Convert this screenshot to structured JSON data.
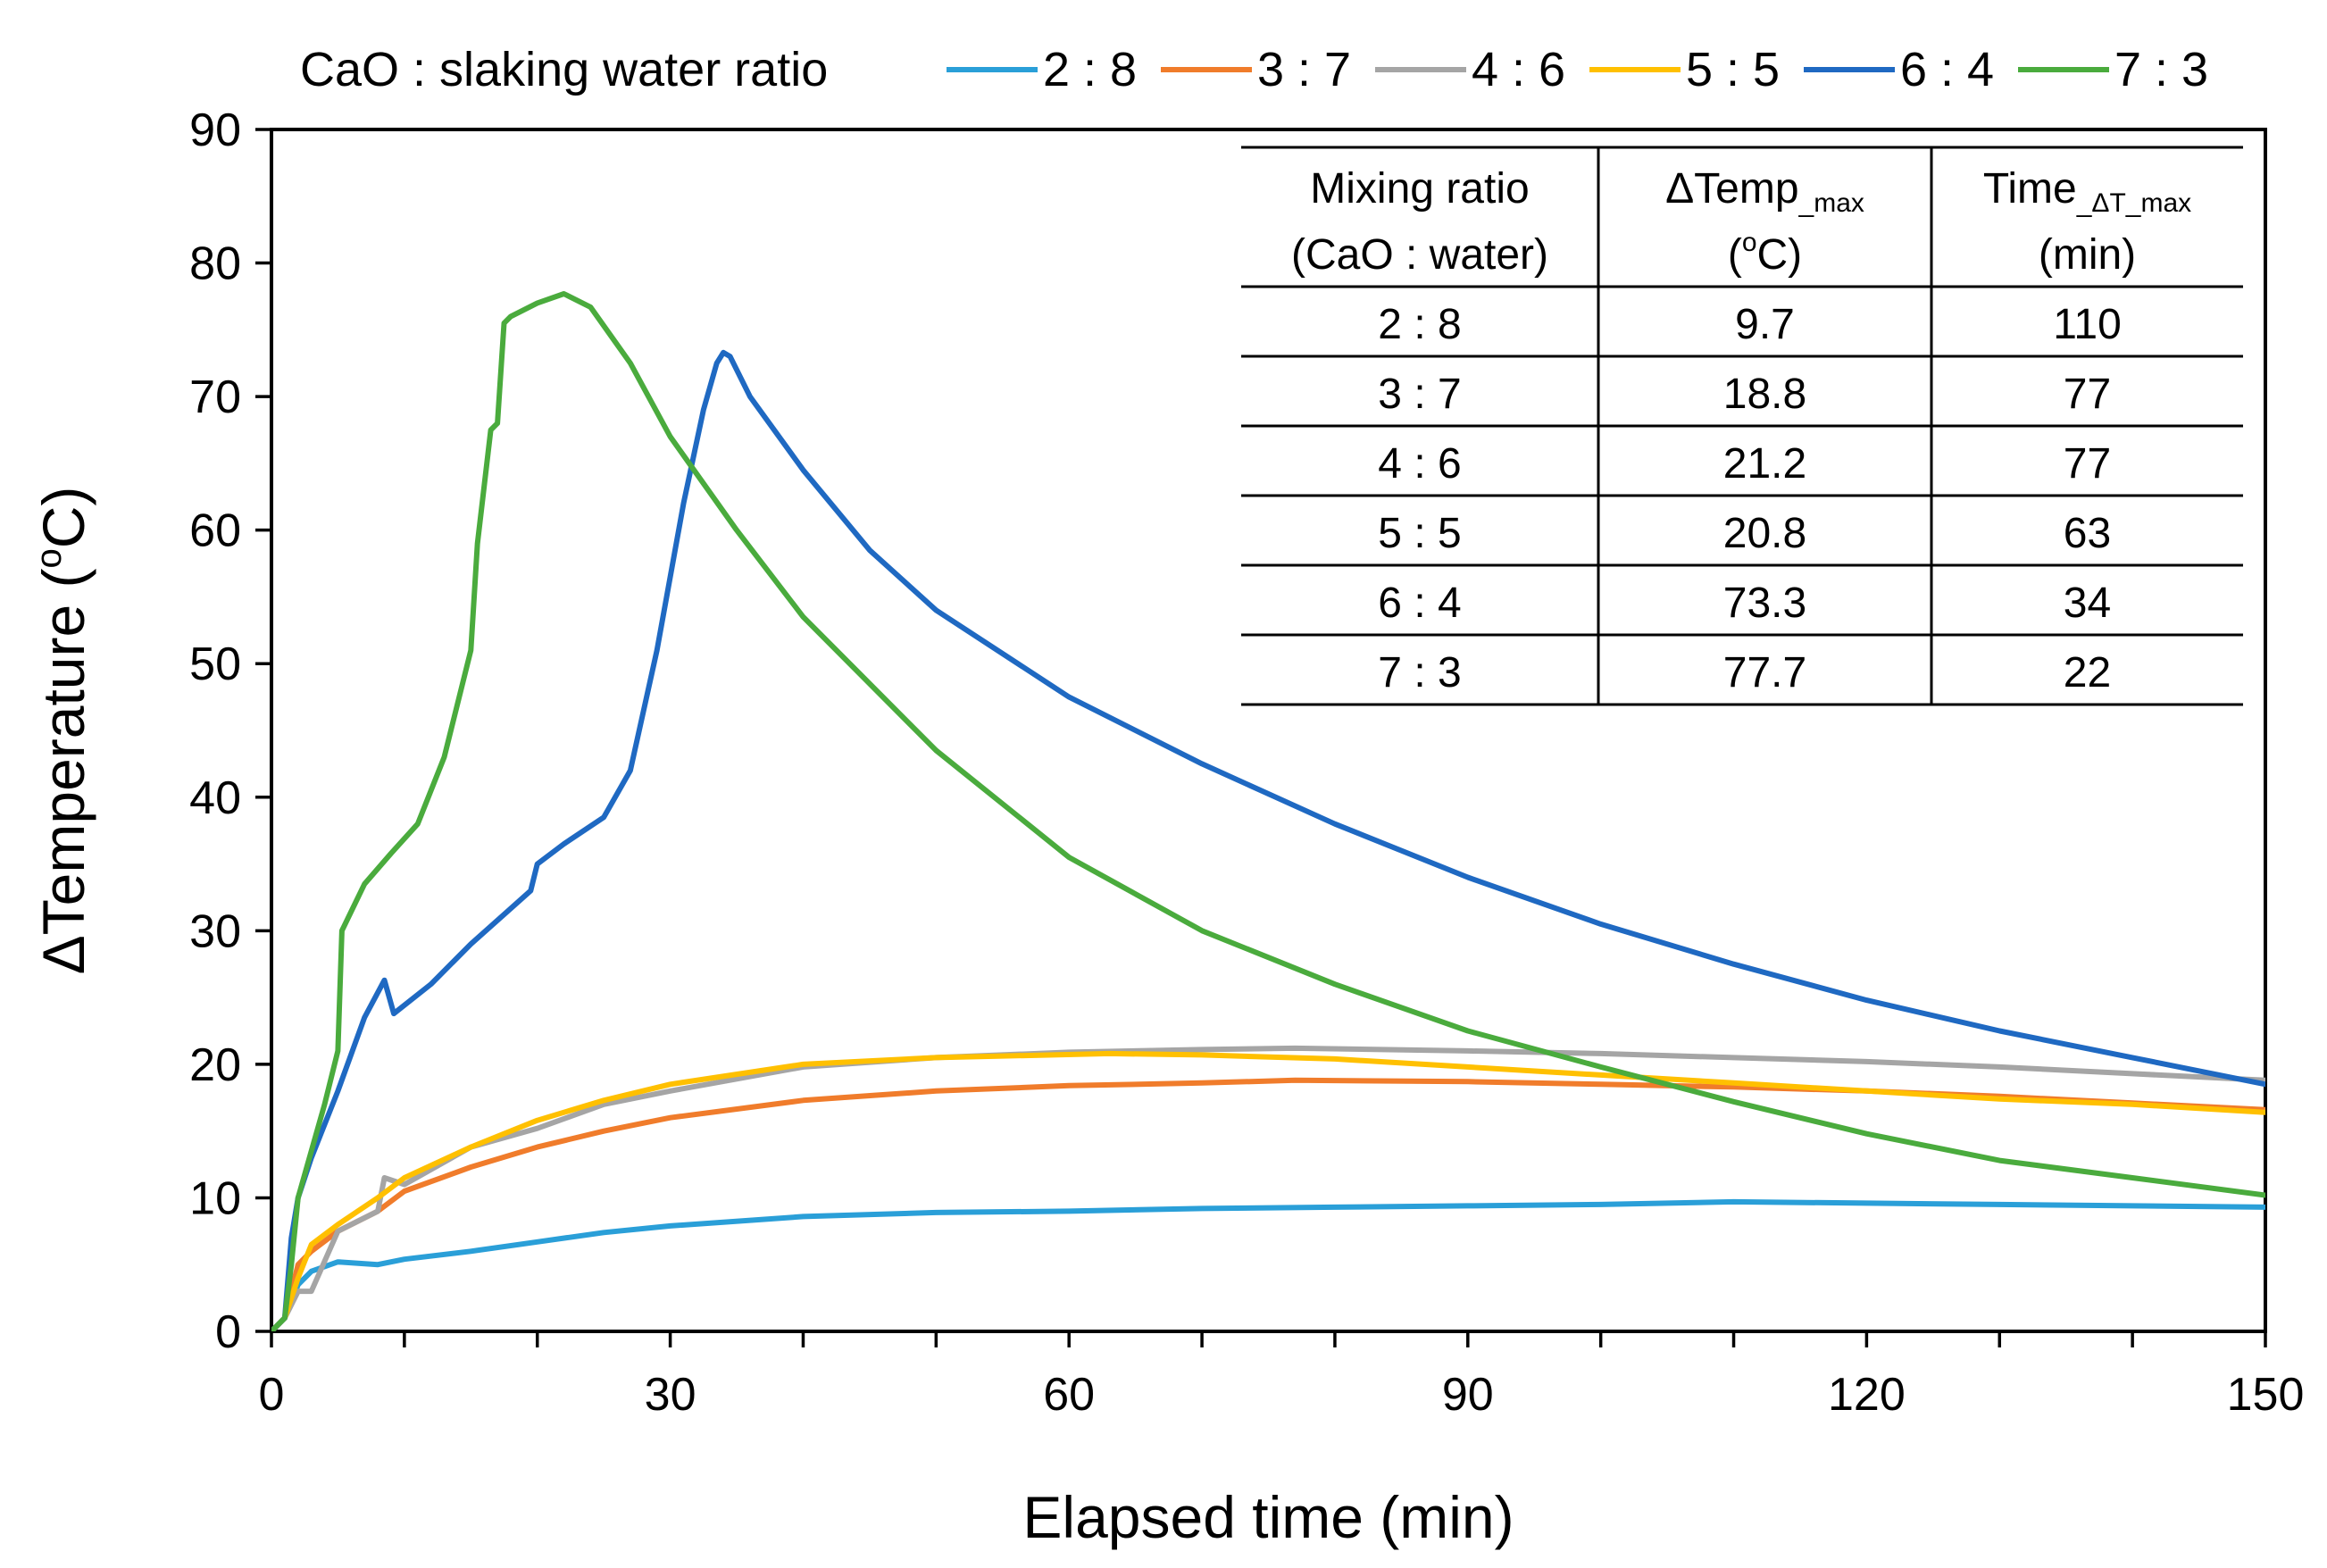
{
  "chart_data": {
    "type": "line",
    "title": "",
    "xlabel": "Elapsed time (min)",
    "ylabel": "ΔTemperature (°C)",
    "ylabel_parts": {
      "prefix": "ΔTemperature (",
      "sup": "o",
      "suffix": "C)"
    },
    "xlim": [
      0,
      150
    ],
    "ylim": [
      0,
      90
    ],
    "xticks": [
      0,
      30,
      60,
      90,
      120,
      150
    ],
    "yticks": [
      0,
      10,
      20,
      30,
      40,
      50,
      60,
      70,
      80,
      90
    ],
    "grid": false,
    "legend_title": "CaO : slaking water ratio",
    "legend_position": "top",
    "series": [
      {
        "name": "2 : 8",
        "color": "#2a9fd8",
        "x": [
          0,
          1,
          2,
          3,
          5,
          8,
          10,
          15,
          20,
          25,
          30,
          40,
          50,
          60,
          70,
          80,
          90,
          100,
          110,
          120,
          130,
          140,
          150
        ],
        "y": [
          0,
          1,
          3.5,
          4.5,
          5.2,
          5.0,
          5.4,
          6.0,
          6.7,
          7.4,
          7.9,
          8.6,
          8.9,
          9.0,
          9.2,
          9.3,
          9.4,
          9.5,
          9.7,
          9.6,
          9.5,
          9.4,
          9.3
        ]
      },
      {
        "name": "3 : 7",
        "color": "#f07c2b",
        "x": [
          0,
          1,
          2,
          3,
          5,
          8,
          10,
          15,
          20,
          25,
          30,
          40,
          50,
          60,
          70,
          77,
          90,
          100,
          110,
          120,
          130,
          140,
          150
        ],
        "y": [
          0,
          1,
          5,
          6,
          7.5,
          9,
          10.5,
          12.3,
          13.8,
          15.0,
          16.0,
          17.3,
          18.0,
          18.4,
          18.6,
          18.8,
          18.7,
          18.5,
          18.3,
          18.0,
          17.6,
          17.1,
          16.6
        ]
      },
      {
        "name": "4 : 6",
        "color": "#a5a5a5",
        "x": [
          0,
          1,
          2,
          3,
          5,
          8,
          8.5,
          10,
          15,
          20,
          25,
          30,
          40,
          50,
          60,
          70,
          77,
          90,
          100,
          110,
          120,
          130,
          140,
          150
        ],
        "y": [
          0,
          1,
          3,
          3,
          7.5,
          9,
          11.5,
          11,
          13.8,
          15.2,
          17.0,
          18.0,
          19.8,
          20.5,
          20.9,
          21.1,
          21.2,
          21.0,
          20.8,
          20.5,
          20.2,
          19.8,
          19.3,
          18.8
        ]
      },
      {
        "name": "5 : 5",
        "color": "#ffc000",
        "x": [
          0,
          1,
          2,
          3,
          5,
          8,
          10,
          15,
          20,
          25,
          30,
          40,
          50,
          63,
          70,
          80,
          90,
          100,
          110,
          120,
          130,
          140,
          150
        ],
        "y": [
          0,
          1,
          4,
          6.5,
          8,
          10,
          11.5,
          13.8,
          15.8,
          17.3,
          18.5,
          20.0,
          20.5,
          20.8,
          20.7,
          20.4,
          19.8,
          19.2,
          18.6,
          18.0,
          17.4,
          17.0,
          16.4
        ]
      },
      {
        "name": "6 : 4",
        "color": "#1f69c2",
        "x": [
          0,
          1,
          1.5,
          2,
          3,
          5,
          7,
          8.5,
          9.2,
          12,
          15,
          19.5,
          20,
          22,
          25,
          27,
          29,
          31,
          32.5,
          33.5,
          34,
          34.5,
          36,
          40,
          45,
          50,
          60,
          70,
          80,
          90,
          100,
          110,
          120,
          130,
          140,
          150
        ],
        "y": [
          0,
          1,
          7,
          10,
          13,
          18,
          23.5,
          26.3,
          23.8,
          26,
          29,
          33,
          35,
          36.5,
          38.5,
          42,
          51,
          62,
          69,
          72.5,
          73.3,
          73,
          70,
          64.5,
          58.5,
          54,
          47.5,
          42.5,
          38,
          34,
          30.5,
          27.5,
          24.8,
          22.5,
          20.5,
          18.5
        ]
      },
      {
        "name": "7 : 3",
        "color": "#4aab3d",
        "x": [
          0,
          1,
          1.5,
          2,
          4,
          5,
          5.3,
          7,
          9,
          11,
          13,
          15,
          15.5,
          16.5,
          17,
          17.5,
          18,
          20,
          22,
          24,
          27,
          30,
          35,
          40,
          50,
          60,
          70,
          80,
          90,
          100,
          110,
          120,
          130,
          140,
          150
        ],
        "y": [
          0,
          1,
          5,
          10,
          17,
          21,
          30,
          33.5,
          35.8,
          38,
          43,
          51,
          59,
          67.5,
          68,
          75.5,
          76,
          77,
          77.7,
          76.7,
          72.5,
          67,
          60,
          53.5,
          43.5,
          35.5,
          30,
          26,
          22.5,
          19.8,
          17.2,
          14.8,
          12.8,
          11.5,
          10.2
        ]
      }
    ],
    "inset_table": {
      "headers": [
        {
          "line1": "Mixing ratio",
          "line2": "(CaO : water)"
        },
        {
          "line1_main": "ΔTemp",
          "line1_sub": "_max",
          "line2_prefix": "(",
          "line2_sup": "o",
          "line2_suffix": "C)"
        },
        {
          "line1_main": "Time",
          "line1_sub": "_ΔT_max",
          "line2": "(min)"
        }
      ],
      "rows": [
        [
          "2 : 8",
          "9.7",
          "110"
        ],
        [
          "3 : 7",
          "18.8",
          "77"
        ],
        [
          "4 : 6",
          "21.2",
          "77"
        ],
        [
          "5 : 5",
          "20.8",
          "63"
        ],
        [
          "6 : 4",
          "73.3",
          "34"
        ],
        [
          "7 : 3",
          "77.7",
          "22"
        ]
      ]
    }
  }
}
